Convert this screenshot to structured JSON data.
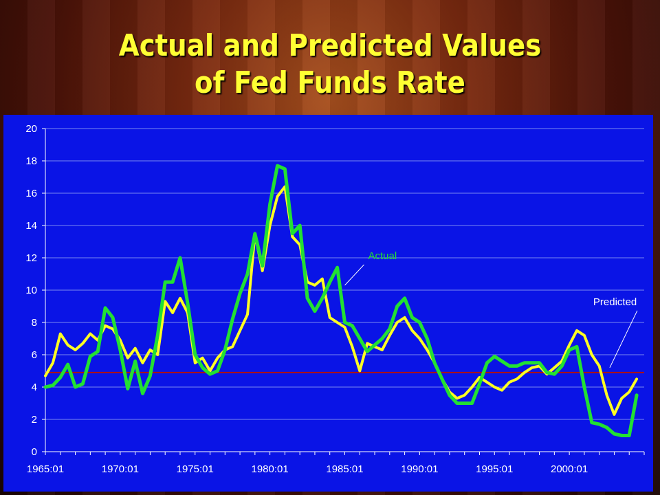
{
  "slide": {
    "title_line1": "Actual and Predicted Values",
    "title_line2": "of Fed Funds Rate"
  },
  "colors": {
    "plot_background": "#0a14e6",
    "actual": "#22e033",
    "predicted": "#ffff22",
    "reference_line": "#b01010",
    "annotation_text_actual": "#22e033",
    "annotation_text_predicted": "#ffffff"
  },
  "chart_data": {
    "type": "line",
    "title": "",
    "xlabel": "",
    "ylabel": "",
    "ylim": [
      0,
      20
    ],
    "yticks": [
      0,
      2,
      4,
      6,
      8,
      10,
      12,
      14,
      16,
      18,
      20
    ],
    "xlim": [
      1965.0,
      2005.0
    ],
    "xtick_labels": [
      "1965:01",
      "1970:01",
      "1975:01",
      "1980:01",
      "1985:01",
      "1990:01",
      "1995:01",
      "2000:01"
    ],
    "xtick_values": [
      1965.0,
      1970.0,
      1975.0,
      1980.0,
      1985.0,
      1990.0,
      1995.0,
      2000.0
    ],
    "grid": "horizontal",
    "annotations": [
      {
        "text": "Actual",
        "series": "Actual",
        "x": 1985.0,
        "y": 10.3
      },
      {
        "text": "Predicted",
        "series": "Predicted",
        "x": 2002.7,
        "y": 5.2
      }
    ],
    "reference_line": {
      "y": 4.9
    },
    "series": [
      {
        "name": "Actual",
        "x": [
          1965.0,
          1965.5,
          1966.0,
          1966.5,
          1967.0,
          1967.5,
          1968.0,
          1968.5,
          1969.0,
          1969.5,
          1970.0,
          1970.5,
          1971.0,
          1971.5,
          1972.0,
          1972.5,
          1973.0,
          1973.5,
          1974.0,
          1974.5,
          1975.0,
          1975.5,
          1976.0,
          1976.5,
          1977.0,
          1977.5,
          1978.0,
          1978.5,
          1979.0,
          1979.5,
          1980.0,
          1980.5,
          1981.0,
          1981.5,
          1982.0,
          1982.5,
          1983.0,
          1983.5,
          1984.0,
          1984.5,
          1985.0,
          1985.5,
          1986.0,
          1986.5,
          1987.0,
          1987.5,
          1988.0,
          1988.5,
          1989.0,
          1989.5,
          1990.0,
          1990.5,
          1991.0,
          1991.5,
          1992.0,
          1992.5,
          1993.0,
          1993.5,
          1994.0,
          1994.5,
          1995.0,
          1995.5,
          1996.0,
          1996.5,
          1997.0,
          1997.5,
          1998.0,
          1998.5,
          1999.0,
          1999.5,
          2000.0,
          2000.5,
          2001.0,
          2001.5,
          2002.0,
          2002.5,
          2003.0,
          2003.5,
          2004.0,
          2004.5
        ],
        "values": [
          4.0,
          4.1,
          4.6,
          5.4,
          4.0,
          4.2,
          5.9,
          6.2,
          8.9,
          8.3,
          6.3,
          3.9,
          5.6,
          3.6,
          4.7,
          7.2,
          10.5,
          10.5,
          12.0,
          9.2,
          6.0,
          5.2,
          4.8,
          5.0,
          6.3,
          8.2,
          9.8,
          11.0,
          13.5,
          11.5,
          15.3,
          17.7,
          17.5,
          13.5,
          14.0,
          9.5,
          8.7,
          9.5,
          10.5,
          11.4,
          8.0,
          7.8,
          7.0,
          6.2,
          6.6,
          7.0,
          7.6,
          9.0,
          9.5,
          8.3,
          8.0,
          7.0,
          5.5,
          4.5,
          3.5,
          3.0,
          3.0,
          3.0,
          4.2,
          5.5,
          5.9,
          5.6,
          5.3,
          5.3,
          5.5,
          5.5,
          5.5,
          4.9,
          4.8,
          5.3,
          6.3,
          6.5,
          4.0,
          1.8,
          1.7,
          1.5,
          1.1,
          1.0,
          1.0,
          3.5
        ]
      },
      {
        "name": "Predicted",
        "x": [
          1965.0,
          1965.5,
          1966.0,
          1966.5,
          1967.0,
          1967.5,
          1968.0,
          1968.5,
          1969.0,
          1969.5,
          1970.0,
          1970.5,
          1971.0,
          1971.5,
          1972.0,
          1972.5,
          1973.0,
          1973.5,
          1974.0,
          1974.5,
          1975.0,
          1975.5,
          1976.0,
          1976.5,
          1977.0,
          1977.5,
          1978.0,
          1978.5,
          1979.0,
          1979.5,
          1980.0,
          1980.5,
          1981.0,
          1981.5,
          1982.0,
          1982.5,
          1983.0,
          1983.5,
          1984.0,
          1984.5,
          1985.0,
          1985.5,
          1986.0,
          1986.5,
          1987.0,
          1987.5,
          1988.0,
          1988.5,
          1989.0,
          1989.5,
          1990.0,
          1990.5,
          1991.0,
          1991.5,
          1992.0,
          1992.5,
          1993.0,
          1993.5,
          1994.0,
          1994.5,
          1995.0,
          1995.5,
          1996.0,
          1996.5,
          1997.0,
          1997.5,
          1998.0,
          1998.5,
          1999.0,
          1999.5,
          2000.0,
          2000.5,
          2001.0,
          2001.5,
          2002.0,
          2002.5,
          2003.0,
          2003.5,
          2004.0,
          2004.5
        ],
        "values": [
          4.7,
          5.5,
          7.3,
          6.6,
          6.3,
          6.7,
          7.3,
          6.9,
          7.8,
          7.6,
          6.9,
          5.8,
          6.4,
          5.5,
          6.3,
          6.0,
          9.3,
          8.6,
          9.5,
          8.6,
          5.5,
          5.8,
          5.0,
          5.8,
          6.3,
          6.5,
          7.5,
          8.5,
          13.5,
          11.2,
          14.0,
          15.8,
          16.4,
          13.3,
          12.8,
          10.5,
          10.3,
          10.7,
          8.3,
          8.0,
          7.7,
          6.5,
          5.0,
          6.7,
          6.5,
          6.3,
          7.2,
          8.0,
          8.3,
          7.5,
          7.0,
          6.3,
          5.5,
          4.5,
          3.7,
          3.3,
          3.5,
          4.0,
          4.6,
          4.3,
          4.0,
          3.8,
          4.3,
          4.5,
          4.9,
          5.2,
          5.3,
          4.8,
          5.2,
          5.6,
          6.6,
          7.5,
          7.2,
          6.0,
          5.3,
          3.5,
          2.3,
          3.3,
          3.7,
          4.5
        ]
      }
    ]
  }
}
